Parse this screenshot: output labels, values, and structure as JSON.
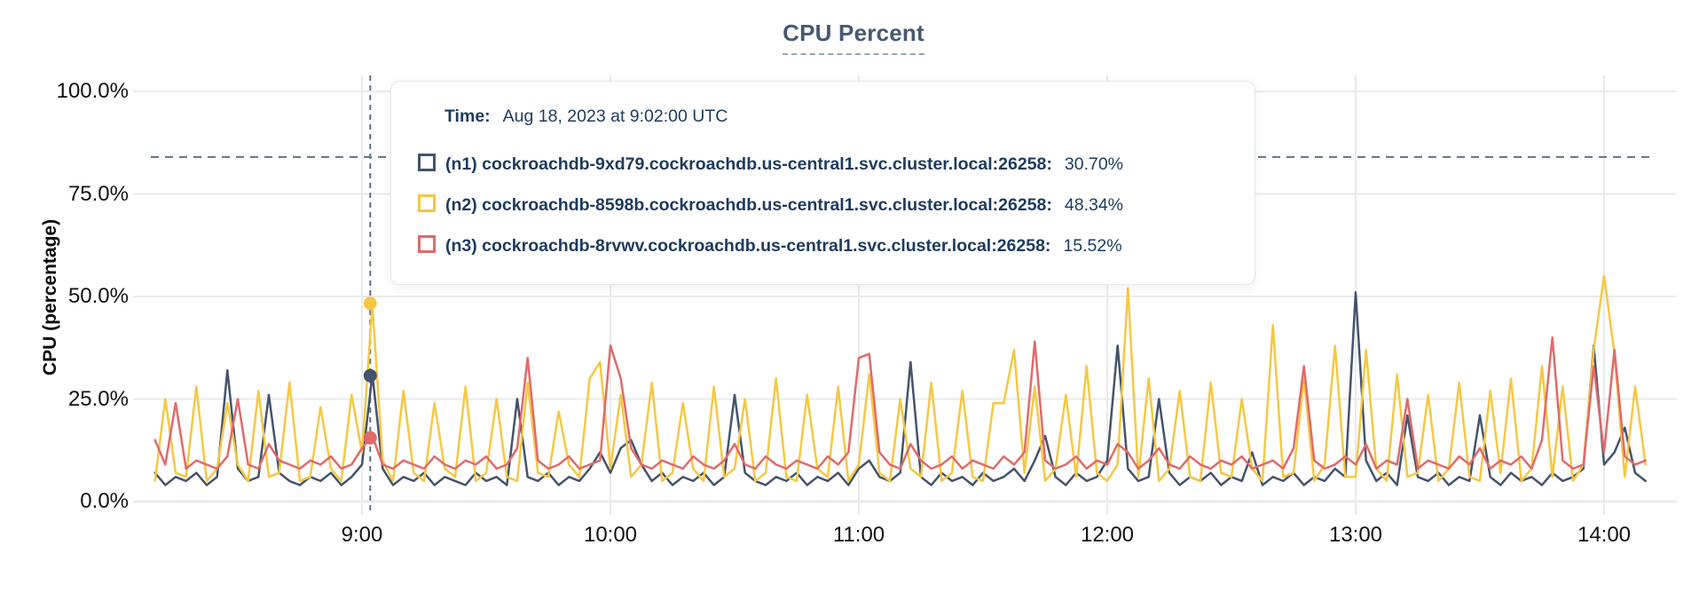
{
  "title": "CPU Percent",
  "axes": {
    "y_label": "CPU (percentage)",
    "y_ticks": [
      {
        "label": "100.0%",
        "value": 100
      },
      {
        "label": "75.0%",
        "value": 75
      },
      {
        "label": "50.0%",
        "value": 50
      },
      {
        "label": "25.0%",
        "value": 25
      },
      {
        "label": "0.0%",
        "value": 0
      }
    ],
    "x_ticks": [
      {
        "label": "9:00",
        "hour": 9
      },
      {
        "label": "10:00",
        "hour": 10
      },
      {
        "label": "11:00",
        "hour": 11
      },
      {
        "label": "12:00",
        "hour": 12
      },
      {
        "label": "13:00",
        "hour": 13
      },
      {
        "label": "14:00",
        "hour": 14
      }
    ]
  },
  "threshold_value": 84,
  "colors": {
    "n1": "#44536B",
    "n2": "#F5C843",
    "n3": "#E16A6A",
    "grid": "#E9EAEC",
    "crosshair": "#5C7380",
    "title_text": "#475872",
    "tooltip_text": "#1C3A5F"
  },
  "tooltip": {
    "time_label": "Time:",
    "time_value": "Aug 18, 2023 at 9:02:00 UTC",
    "hover_hour": 9.0333,
    "rows": [
      {
        "id": "n1",
        "color": "#44536B",
        "label": "(n1) cockroachdb-9xd79.cockroachdb.us-central1.svc.cluster.local:26258:",
        "value": "30.70%",
        "value_num": 30.7
      },
      {
        "id": "n2",
        "color": "#F5C843",
        "label": "(n2) cockroachdb-8598b.cockroachdb.us-central1.svc.cluster.local:26258:",
        "value": "48.34%",
        "value_num": 48.34
      },
      {
        "id": "n3",
        "color": "#E16A6A",
        "label": "(n3) cockroachdb-8rvwv.cockroachdb.us-central1.svc.cluster.local:26258:",
        "value": "15.52%",
        "value_num": 15.52
      }
    ]
  },
  "chart_data": {
    "type": "line",
    "title": "CPU Percent",
    "ylabel": "CPU (percentage)",
    "ylim": [
      0,
      100
    ],
    "grid": true,
    "legend_position": "tooltip-overlay",
    "x_unit": "hour_of_day",
    "x_start": 8.1667,
    "x_step": 0.0416667,
    "x_tick_hours": [
      9,
      10,
      11,
      12,
      13,
      14
    ],
    "threshold_dashed_y": 84,
    "hover": {
      "x": 9.0333,
      "time": "Aug 18, 2023 at 9:02:00 UTC",
      "values": {
        "n1": 30.7,
        "n2": 48.34,
        "n3": 15.52
      }
    },
    "series": [
      {
        "id": "n1",
        "name": "(n1) cockroachdb-9xd79.cockroachdb.us-central1.svc.cluster.local:26258",
        "color": "#44536B",
        "values": [
          7,
          4,
          6,
          5,
          7,
          4,
          6,
          32,
          8,
          5,
          6,
          26,
          7,
          5,
          4,
          6,
          5,
          7,
          4,
          6,
          9,
          31,
          8,
          4,
          6,
          5,
          7,
          4,
          6,
          5,
          4,
          7,
          5,
          6,
          4,
          25,
          6,
          5,
          7,
          4,
          6,
          5,
          8,
          12,
          7,
          13,
          15,
          9,
          5,
          7,
          4,
          6,
          5,
          7,
          4,
          6,
          26,
          7,
          5,
          4,
          6,
          5,
          7,
          4,
          6,
          5,
          7,
          4,
          8,
          10,
          6,
          5,
          7,
          34,
          6,
          4,
          7,
          5,
          6,
          4,
          7,
          5,
          6,
          8,
          5,
          10,
          16,
          6,
          4,
          7,
          5,
          6,
          10,
          38,
          8,
          5,
          6,
          25,
          7,
          4,
          6,
          5,
          7,
          4,
          6,
          5,
          12,
          4,
          6,
          5,
          7,
          4,
          6,
          5,
          8,
          6,
          51,
          10,
          5,
          7,
          4,
          21,
          6,
          5,
          7,
          4,
          6,
          5,
          21,
          6,
          4,
          7,
          5,
          6,
          4,
          7,
          5,
          6,
          8,
          38,
          9,
          12,
          18,
          7,
          5
        ]
      },
      {
        "id": "n2",
        "name": "(n2) cockroachdb-8598b.cockroachdb.us-central1.svc.cluster.local:26258",
        "color": "#F5C843",
        "values": [
          5,
          25,
          7,
          6,
          28,
          5,
          8,
          24,
          9,
          5,
          27,
          6,
          7,
          29,
          5,
          6,
          23,
          8,
          5,
          26,
          12,
          48,
          10,
          5,
          27,
          7,
          5,
          24,
          8,
          6,
          28,
          5,
          7,
          25,
          6,
          5,
          29,
          7,
          6,
          22,
          9,
          6,
          30,
          34,
          8,
          26,
          6,
          9,
          29,
          5,
          7,
          24,
          8,
          5,
          28,
          6,
          8,
          25,
          5,
          7,
          30,
          6,
          5,
          26,
          8,
          6,
          28,
          5,
          9,
          31,
          7,
          5,
          25,
          8,
          6,
          29,
          5,
          7,
          27,
          6,
          5,
          24,
          24,
          37,
          7,
          28,
          5,
          8,
          26,
          6,
          33,
          7,
          5,
          9,
          52,
          6,
          30,
          5,
          8,
          27,
          6,
          5,
          29,
          7,
          6,
          25,
          8,
          5,
          43,
          6,
          7,
          30,
          5,
          9,
          38,
          6,
          6,
          37,
          8,
          5,
          31,
          6,
          7,
          26,
          5,
          8,
          29,
          6,
          5,
          27,
          7,
          30,
          5,
          8,
          33,
          6,
          28,
          5,
          9,
          37,
          55,
          36,
          6,
          28,
          9
        ]
      },
      {
        "id": "n3",
        "name": "(n3) cockroachdb-8rvwv.cockroachdb.us-central1.svc.cluster.local:26258",
        "color": "#E16A6A",
        "values": [
          15,
          9,
          24,
          8,
          10,
          9,
          8,
          11,
          25,
          9,
          8,
          14,
          10,
          9,
          8,
          10,
          9,
          11,
          8,
          9,
          13,
          16,
          9,
          8,
          10,
          9,
          8,
          11,
          9,
          8,
          10,
          9,
          11,
          8,
          9,
          13,
          35,
          10,
          8,
          9,
          11,
          8,
          9,
          10,
          38,
          30,
          13,
          9,
          8,
          10,
          9,
          8,
          11,
          9,
          8,
          10,
          14,
          9,
          8,
          11,
          9,
          8,
          10,
          9,
          8,
          11,
          9,
          12,
          35,
          36,
          12,
          9,
          8,
          14,
          10,
          8,
          9,
          11,
          8,
          10,
          9,
          8,
          11,
          9,
          12,
          39,
          10,
          8,
          9,
          11,
          8,
          10,
          9,
          14,
          12,
          8,
          10,
          13,
          9,
          8,
          11,
          9,
          8,
          10,
          9,
          11,
          8,
          9,
          10,
          8,
          13,
          33,
          10,
          8,
          9,
          11,
          9,
          14,
          8,
          10,
          9,
          25,
          8,
          10,
          9,
          8,
          11,
          9,
          13,
          8,
          10,
          9,
          11,
          8,
          15,
          40,
          10,
          8,
          9,
          33,
          12,
          37,
          11,
          9,
          10
        ]
      }
    ]
  }
}
